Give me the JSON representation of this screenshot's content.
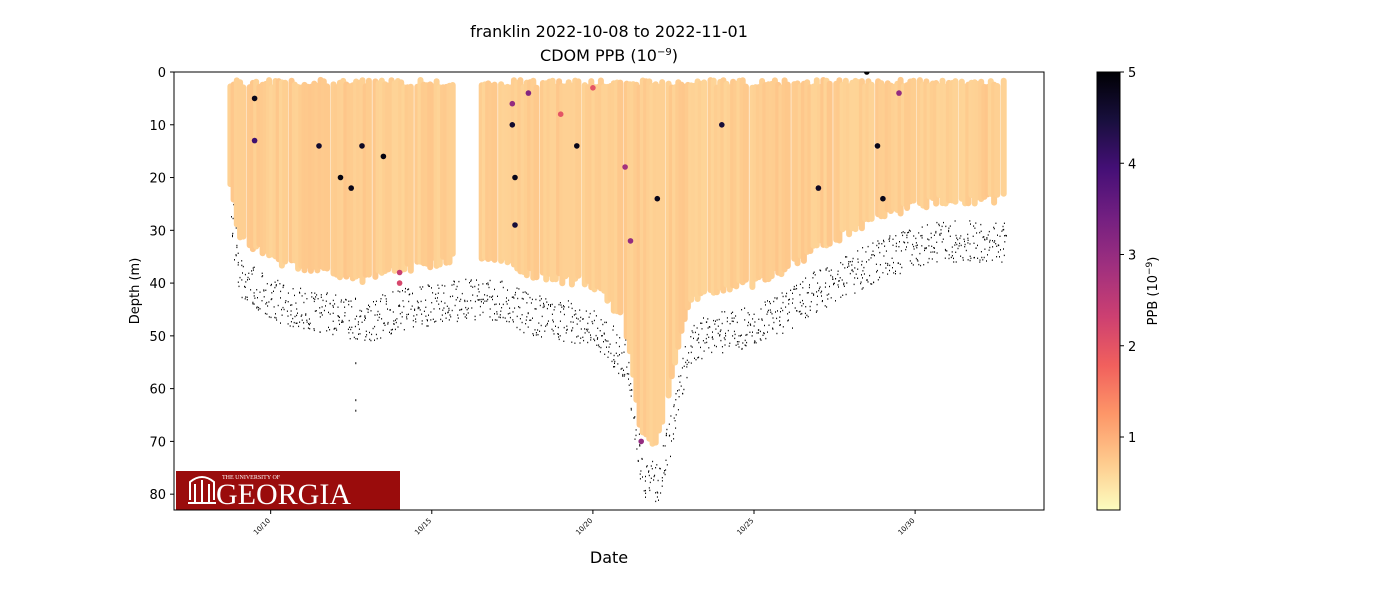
{
  "chart_data": {
    "type": "scatter",
    "title": "franklin 2022-10-08 to 2022-11-01",
    "subtitle": "CDOM PPB",
    "subtitle_unit_base": "10",
    "subtitle_unit_exp": "−9",
    "xlabel": "Date",
    "ylabel": "Depth (m)",
    "x_range": [
      "2022-10-07",
      "2022-11-03"
    ],
    "ylim": [
      0,
      83
    ],
    "y_inverted": true,
    "grid": false,
    "x_ticks": [
      "10/10",
      "10/15",
      "10/20",
      "10/25",
      "10/30"
    ],
    "y_ticks": [
      0,
      10,
      20,
      30,
      40,
      50,
      60,
      70,
      80
    ],
    "colorbar": {
      "label": "PPB",
      "label_unit_base": "10",
      "label_unit_exp": "−9",
      "min": 0.2,
      "max": 5,
      "ticks": [
        1,
        2,
        3,
        4,
        5
      ],
      "colormap": "magma_r",
      "colors": [
        "#fcfdbf",
        "#feca8d",
        "#fd9668",
        "#f1605d",
        "#cd4071",
        "#9e2f7f",
        "#721f81",
        "#440f76",
        "#180f3d",
        "#000004"
      ]
    },
    "profile_depth_envelope": {
      "description_dates": [
        "2022-10-08T18",
        "2022-10-09",
        "2022-10-10",
        "2022-10-11",
        "2022-10-12",
        "2022-10-13",
        "2022-10-14",
        "2022-10-15",
        "2022-10-16",
        "2022-10-17",
        "2022-10-18",
        "2022-10-19",
        "2022-10-20",
        "2022-10-21",
        "2022-10-21T12",
        "2022-10-22",
        "2022-10-22T12",
        "2022-10-23",
        "2022-10-24",
        "2022-10-25",
        "2022-10-26",
        "2022-10-27",
        "2022-10-28",
        "2022-10-29",
        "2022-10-30",
        "2022-10-31",
        "2022-11-01",
        "2022-11-01T20"
      ],
      "max_depth_m": [
        24,
        34,
        38,
        40,
        41,
        42,
        40,
        39,
        38,
        38,
        41,
        42,
        43,
        50,
        72,
        73,
        60,
        46,
        44,
        43,
        40,
        36,
        33,
        30,
        28,
        27,
        27,
        27
      ]
    },
    "cdom_background_ppb": 0.7,
    "sensor_gap_dates": [
      "2022-10-15T20",
      "2022-10-16T12",
      "2022-10-21T12",
      "2022-10-22"
    ],
    "anomaly_points": [
      {
        "date": "2022-10-09T12",
        "depth": 13,
        "value": 4.0
      },
      {
        "date": "2022-10-09T12",
        "depth": 5,
        "value": 4.8
      },
      {
        "date": "2022-10-11T12",
        "depth": 14,
        "value": 4.6
      },
      {
        "date": "2022-10-12T04",
        "depth": 20,
        "value": 4.9
      },
      {
        "date": "2022-10-12T12",
        "depth": 22,
        "value": 4.8
      },
      {
        "date": "2022-10-12T20",
        "depth": 14,
        "value": 4.7
      },
      {
        "date": "2022-10-13T12",
        "depth": 16,
        "value": 4.9
      },
      {
        "date": "2022-10-14",
        "depth": 38,
        "value": 2.4
      },
      {
        "date": "2022-10-14",
        "depth": 40,
        "value": 2.2
      },
      {
        "date": "2022-10-17T12",
        "depth": 6,
        "value": 3.0
      },
      {
        "date": "2022-10-17T12",
        "depth": 10,
        "value": 4.6
      },
      {
        "date": "2022-10-17T14",
        "depth": 20,
        "value": 4.8
      },
      {
        "date": "2022-10-17T14",
        "depth": 29,
        "value": 4.5
      },
      {
        "date": "2022-10-18",
        "depth": 4,
        "value": 3.2
      },
      {
        "date": "2022-10-19",
        "depth": 8,
        "value": 2.0
      },
      {
        "date": "2022-10-19T12",
        "depth": 14,
        "value": 4.8
      },
      {
        "date": "2022-10-20",
        "depth": 3,
        "value": 2.0
      },
      {
        "date": "2022-10-21",
        "depth": 18,
        "value": 2.8
      },
      {
        "date": "2022-10-21T04",
        "depth": 32,
        "value": 3.0
      },
      {
        "date": "2022-10-21T12",
        "depth": 70,
        "value": 3.0
      },
      {
        "date": "2022-10-22",
        "depth": 24,
        "value": 4.8
      },
      {
        "date": "2022-10-24",
        "depth": 10,
        "value": 4.5
      },
      {
        "date": "2022-10-27",
        "depth": 22,
        "value": 4.7
      },
      {
        "date": "2022-10-28T12",
        "depth": 0,
        "value": 5.0
      },
      {
        "date": "2022-10-28T20",
        "depth": 14,
        "value": 4.8
      },
      {
        "date": "2022-10-29",
        "depth": 24,
        "value": 4.8
      },
      {
        "date": "2022-10-29T12",
        "depth": 4,
        "value": 3.0
      }
    ],
    "outlier_bottom_points": [
      {
        "date": "2022-10-12T15",
        "depth": 55
      },
      {
        "date": "2022-10-12T15",
        "depth": 62
      },
      {
        "date": "2022-10-12T15",
        "depth": 64
      }
    ]
  },
  "logo": {
    "line1": "THE UNIVERSITY OF",
    "line2": "GEORGIA",
    "bg_color": "#9a0c0c",
    "text_color": "#ffffff"
  }
}
